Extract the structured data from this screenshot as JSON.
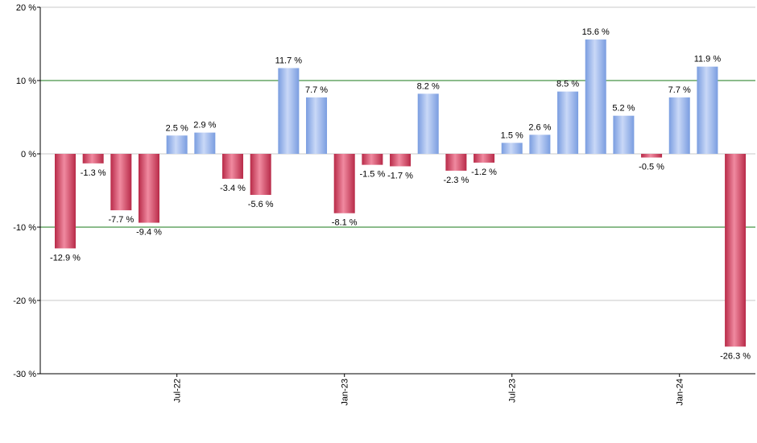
{
  "chart_data": {
    "type": "bar",
    "ylim": [
      -30,
      20
    ],
    "yticks": [
      {
        "value": 20,
        "label": "20 %"
      },
      {
        "value": 10,
        "label": "10 %"
      },
      {
        "value": 0,
        "label": "0 %"
      },
      {
        "value": -10,
        "label": "-10 %"
      },
      {
        "value": -20,
        "label": "-20 %"
      },
      {
        "value": -30,
        "label": "-30 %"
      }
    ],
    "xtick_labels": [
      {
        "bar_index": 4,
        "label": "Jul-22"
      },
      {
        "bar_index": 10,
        "label": "Jan-23"
      },
      {
        "bar_index": 16,
        "label": "Jul-23"
      },
      {
        "bar_index": 22,
        "label": "Jan-24"
      }
    ],
    "values": [
      -12.9,
      -1.3,
      -7.7,
      -9.4,
      2.5,
      2.9,
      -3.4,
      -5.6,
      11.7,
      7.7,
      -8.1,
      -1.5,
      -1.7,
      8.2,
      -2.3,
      -1.2,
      1.5,
      2.6,
      8.5,
      15.6,
      5.2,
      -0.5,
      7.7,
      11.9,
      -26.3
    ],
    "value_labels": [
      "-12.9 %",
      "-1.3 %",
      "-7.7 %",
      "-9.4 %",
      "2.5 %",
      "2.9 %",
      "-3.4 %",
      "-5.6 %",
      "11.7 %",
      "7.7 %",
      "-8.1 %",
      "-1.5 %",
      "-1.7 %",
      "8.2 %",
      "-2.3 %",
      "-1.2 %",
      "1.5 %",
      "2.6 %",
      "8.5 %",
      "15.6 %",
      "5.2 %",
      "-0.5 %",
      "7.7 %",
      "11.9 %",
      "-26.3 %"
    ],
    "reference_lines": [
      10,
      -10
    ],
    "grid": true,
    "colors": {
      "positive": "#7a9de0",
      "positive_light": "#c9d8f7",
      "negative": "#b82a48",
      "negative_light": "#f08aa0",
      "reference_line": "#1a7a1a",
      "grid": "#c8c8c8"
    }
  }
}
